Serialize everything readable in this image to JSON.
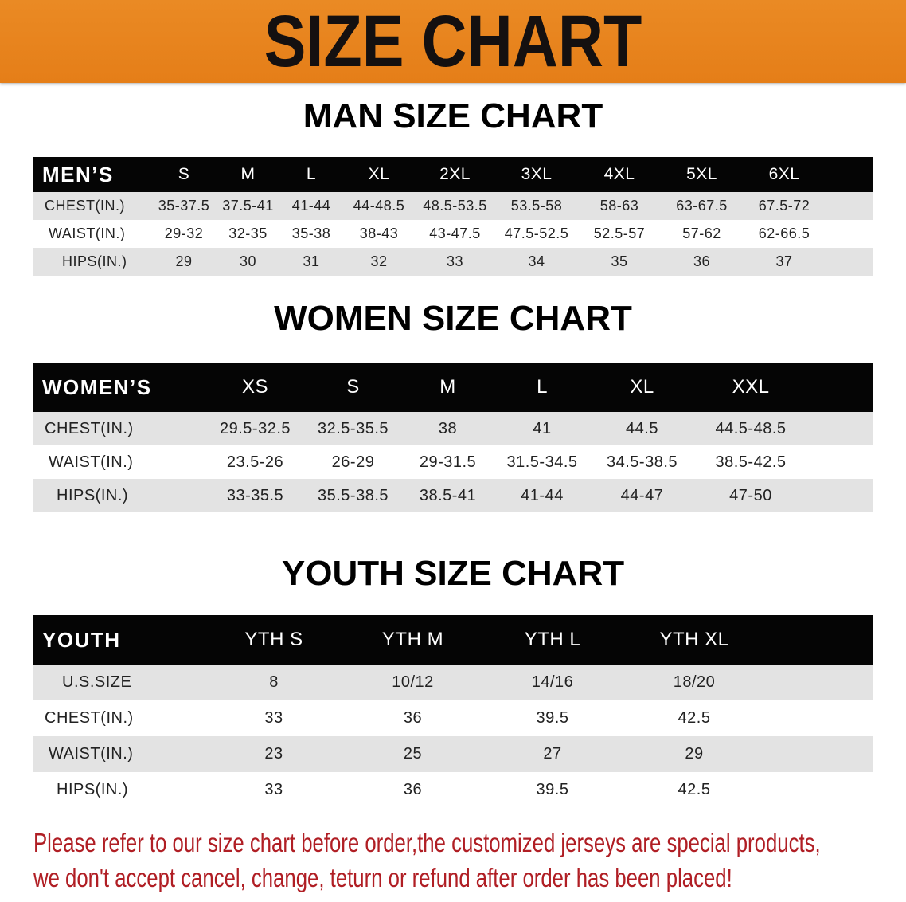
{
  "banner": {
    "title": "SIZE CHART",
    "color": "#e8841e"
  },
  "men": {
    "title": "MAN SIZE CHART",
    "header": [
      "MEN’S",
      "S",
      "M",
      "L",
      "XL",
      "2XL",
      "3XL",
      "4XL",
      "5XL",
      "6XL"
    ],
    "rows": [
      [
        "CHEST(IN.)",
        "35-37.5",
        "37.5-41",
        "41-44",
        "44-48.5",
        "48.5-53.5",
        "53.5-58",
        "58-63",
        "63-67.5",
        "67.5-72"
      ],
      [
        "WAIST(IN.)",
        "29-32",
        "32-35",
        "35-38",
        "38-43",
        "43-47.5",
        "47.5-52.5",
        "52.5-57",
        "57-62",
        "62-66.5"
      ],
      [
        "HIPS(IN.)",
        "29",
        "30",
        "31",
        "32",
        "33",
        "34",
        "35",
        "36",
        "37"
      ]
    ]
  },
  "women": {
    "title": "WOMEN SIZE CHART",
    "header": [
      "WOMEN’S",
      "XS",
      "S",
      "M",
      "L",
      "XL",
      "XXL"
    ],
    "rows": [
      [
        "CHEST(IN.)",
        "29.5-32.5",
        "32.5-35.5",
        "38",
        "41",
        "44.5",
        "44.5-48.5"
      ],
      [
        "WAIST(IN.)",
        "23.5-26",
        "26-29",
        "29-31.5",
        "31.5-34.5",
        "34.5-38.5",
        "38.5-42.5"
      ],
      [
        "HIPS(IN.)",
        "33-35.5",
        "35.5-38.5",
        "38.5-41",
        "41-44",
        "44-47",
        "47-50"
      ]
    ]
  },
  "youth": {
    "title": "YOUTH SIZE CHART",
    "header": [
      "YOUTH",
      "YTH S",
      "YTH M",
      "YTH L",
      "YTH XL"
    ],
    "rows": [
      [
        "U.S.SIZE",
        "8",
        "10/12",
        "14/16",
        "18/20"
      ],
      [
        "CHEST(IN.)",
        "33",
        "36",
        "39.5",
        "42.5"
      ],
      [
        "WAIST(IN.)",
        "23",
        "25",
        "27",
        "29"
      ],
      [
        "HIPS(IN.)",
        "33",
        "36",
        "39.5",
        "42.5"
      ]
    ]
  },
  "notice": {
    "line1": "Please refer to our size chart before order,the customized jerseys are special products,",
    "line2": "we don't accept cancel, change, teturn or refund after order has been placed!",
    "color": "#b01e24"
  }
}
